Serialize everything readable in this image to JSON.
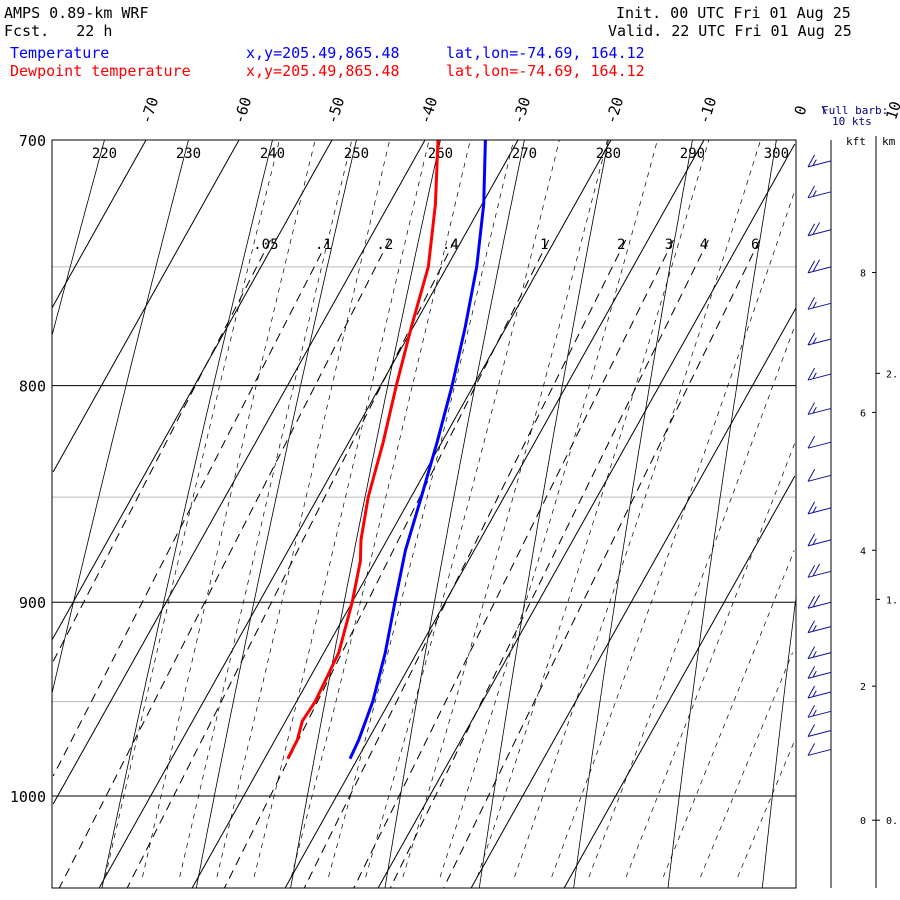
{
  "header": {
    "model": "AMPS 0.89-km WRF",
    "fcst": "Fcst.   22 h",
    "init": "Init. 00 UTC Fri 01 Aug 25",
    "valid": "Valid. 22 UTC Fri 01 Aug 25"
  },
  "legend": [
    {
      "name": "Temperature",
      "coords": "x,y=205.49,865.48",
      "latlon": "lat,lon=-74.69, 164.12",
      "color": "#0000ff"
    },
    {
      "name": "Dewpoint temperature",
      "coords": "x,y=205.49,865.48",
      "latlon": "lat,lon=-74.69, 164.12",
      "color": "#ff0000"
    }
  ],
  "barb_legend": {
    "line1": "Full barb:",
    "line2": "10 kts"
  },
  "height_axis": {
    "kft_label": "kft",
    "km_label": "km",
    "kft_ticks": [
      0,
      2,
      4,
      6,
      8
    ],
    "km_ticks": [
      {
        "label": "0.",
        "km": 0
      },
      {
        "label": "1.",
        "km": 1
      },
      {
        "label": "2.",
        "km": 2
      }
    ]
  },
  "chart_data": {
    "type": "line",
    "diagram": "skew-T log-P",
    "pressure_ticks": [
      700,
      800,
      900,
      1000
    ],
    "ylim": [
      1045,
      700
    ],
    "temperature_ticks": [
      -70,
      -60,
      -50,
      -40,
      -30,
      -20,
      -10,
      0,
      10
    ],
    "dry_adiabat_labels": [
      220,
      230,
      240,
      250,
      260,
      270,
      280,
      290,
      300
    ],
    "mixing_ratio_labels": [
      ".05",
      ".1",
      ".2",
      ".4",
      "1",
      "2",
      "3",
      "4",
      "6"
    ],
    "mixing_ratio_values": [
      0.05,
      0.1,
      0.2,
      0.4,
      1,
      2,
      3,
      4,
      6
    ],
    "series": [
      {
        "name": "Temperature",
        "color": "#0000ff",
        "points": [
          {
            "p": 980,
            "t": -10.8
          },
          {
            "p": 970,
            "t": -11.0
          },
          {
            "p": 950,
            "t": -11.8
          },
          {
            "p": 925,
            "t": -13.4
          },
          {
            "p": 900,
            "t": -15.4
          },
          {
            "p": 875,
            "t": -17.4
          },
          {
            "p": 850,
            "t": -18.9
          },
          {
            "p": 825,
            "t": -20.5
          },
          {
            "p": 800,
            "t": -22.3
          },
          {
            "p": 775,
            "t": -24.4
          },
          {
            "p": 750,
            "t": -26.8
          },
          {
            "p": 725,
            "t": -29.8
          },
          {
            "p": 700,
            "t": -33.5
          }
        ]
      },
      {
        "name": "Dewpoint temperature",
        "color": "#ff0000",
        "points": [
          {
            "p": 980,
            "t": -17.5
          },
          {
            "p": 970,
            "t": -17.6
          },
          {
            "p": 960,
            "t": -18.2
          },
          {
            "p": 950,
            "t": -18.0
          },
          {
            "p": 925,
            "t": -18.4
          },
          {
            "p": 900,
            "t": -20.0
          },
          {
            "p": 880,
            "t": -21.6
          },
          {
            "p": 870,
            "t": -22.8
          },
          {
            "p": 850,
            "t": -24.6
          },
          {
            "p": 825,
            "t": -26.3
          },
          {
            "p": 800,
            "t": -28.3
          },
          {
            "p": 775,
            "t": -30.2
          },
          {
            "p": 750,
            "t": -32.0
          },
          {
            "p": 725,
            "t": -35.0
          },
          {
            "p": 700,
            "t": -38.6
          }
        ]
      }
    ],
    "wind_barbs": [
      {
        "p": 975,
        "spd": 10
      },
      {
        "p": 965,
        "spd": 10
      },
      {
        "p": 955,
        "spd": 15
      },
      {
        "p": 945,
        "spd": 15
      },
      {
        "p": 935,
        "spd": 15
      },
      {
        "p": 925,
        "spd": 15
      },
      {
        "p": 912,
        "spd": 15
      },
      {
        "p": 900,
        "spd": 20
      },
      {
        "p": 885,
        "spd": 20
      },
      {
        "p": 870,
        "spd": 15
      },
      {
        "p": 855,
        "spd": 15
      },
      {
        "p": 840,
        "spd": 10
      },
      {
        "p": 825,
        "spd": 10
      },
      {
        "p": 810,
        "spd": 15
      },
      {
        "p": 795,
        "spd": 15
      },
      {
        "p": 780,
        "spd": 15
      },
      {
        "p": 765,
        "spd": 15
      },
      {
        "p": 750,
        "spd": 20
      },
      {
        "p": 735,
        "spd": 20
      },
      {
        "p": 720,
        "spd": 15
      },
      {
        "p": 708,
        "spd": 15
      }
    ]
  }
}
